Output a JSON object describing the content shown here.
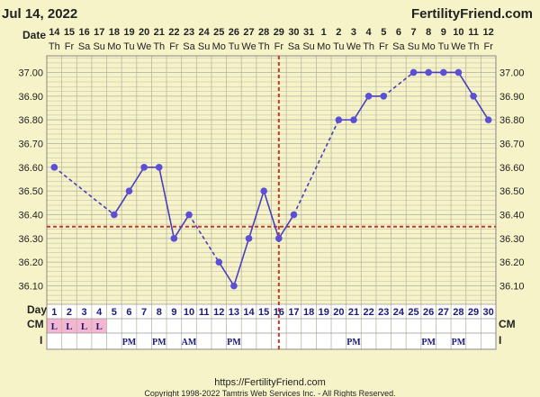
{
  "header": {
    "date": "Jul 14, 2022",
    "brand": "FertilityFriend.com"
  },
  "footer": {
    "url": "https://FertilityFriend.com",
    "copyright": "Copyright 1998-2022 Tamtris Web Services Inc. - All Rights Reserved."
  },
  "row_labels": {
    "date": "Date",
    "day": "Day",
    "cm": "CM",
    "intercourse": "I"
  },
  "chart_data": {
    "type": "line",
    "title": "",
    "dates": [
      "14",
      "15",
      "16",
      "17",
      "18",
      "19",
      "20",
      "21",
      "22",
      "23",
      "24",
      "25",
      "26",
      "27",
      "28",
      "29",
      "30",
      "31",
      "1",
      "2",
      "3",
      "4",
      "5",
      "6",
      "7",
      "8",
      "9",
      "10",
      "11",
      "12"
    ],
    "weekdays": [
      "Th",
      "Fr",
      "Sa",
      "Su",
      "Mo",
      "Tu",
      "We",
      "Th",
      "Fr",
      "Sa",
      "Su",
      "Mo",
      "Tu",
      "We",
      "Th",
      "Fr",
      "Sa",
      "Su",
      "Mo",
      "Tu",
      "We",
      "Th",
      "Fr",
      "Sa",
      "Su",
      "Mo",
      "Tu",
      "We",
      "Th",
      "Fr"
    ],
    "days": [
      1,
      2,
      3,
      4,
      5,
      6,
      7,
      8,
      9,
      10,
      11,
      12,
      13,
      14,
      15,
      16,
      17,
      18,
      19,
      20,
      21,
      22,
      23,
      24,
      25,
      26,
      27,
      28,
      29,
      30
    ],
    "temperatures": [
      36.6,
      null,
      null,
      null,
      36.4,
      36.5,
      36.6,
      36.6,
      36.3,
      36.4,
      null,
      36.2,
      36.1,
      36.3,
      36.5,
      36.3,
      36.4,
      null,
      null,
      36.8,
      36.8,
      36.9,
      36.9,
      null,
      37.0,
      37.0,
      37.0,
      37.0,
      36.9,
      36.8
    ],
    "ytick_values": [
      37.0,
      36.9,
      36.8,
      36.7,
      36.6,
      36.5,
      36.4,
      36.3,
      36.2,
      36.1
    ],
    "ytick_labels": [
      "37.00",
      "36.90",
      "36.80",
      "36.70",
      "36.60",
      "36.50",
      "36.40",
      "36.30",
      "36.20",
      "36.10"
    ],
    "ylim": [
      36.03,
      37.07
    ],
    "coverline": 36.35,
    "ovulation_day": 16,
    "grid": true,
    "cervical_mucus": [
      "L",
      "L",
      "L",
      "L",
      "",
      "",
      "",
      "",
      "",
      "",
      "",
      "",
      "",
      "",
      "",
      "",
      "",
      "",
      "",
      "",
      "",
      "",
      "",
      "",
      "",
      "",
      "",
      "",
      "",
      ""
    ],
    "intercourse": [
      "",
      "",
      "",
      "",
      "",
      "PM",
      "",
      "PM",
      "",
      "AM",
      "",
      "",
      "PM",
      "",
      "",
      "",
      "",
      "",
      "",
      "",
      "PM",
      "",
      "",
      "",
      "",
      "PM",
      "",
      "PM",
      "",
      ""
    ],
    "colors": {
      "background": "#f7f3c9",
      "grid": "#b9b9a3",
      "line": "#4b3fbf",
      "marker": "#5a4fd6",
      "coverline": "#c0392b",
      "text_blue": "#1a1a7a",
      "cm_highlight": "#f4b6d0"
    }
  }
}
